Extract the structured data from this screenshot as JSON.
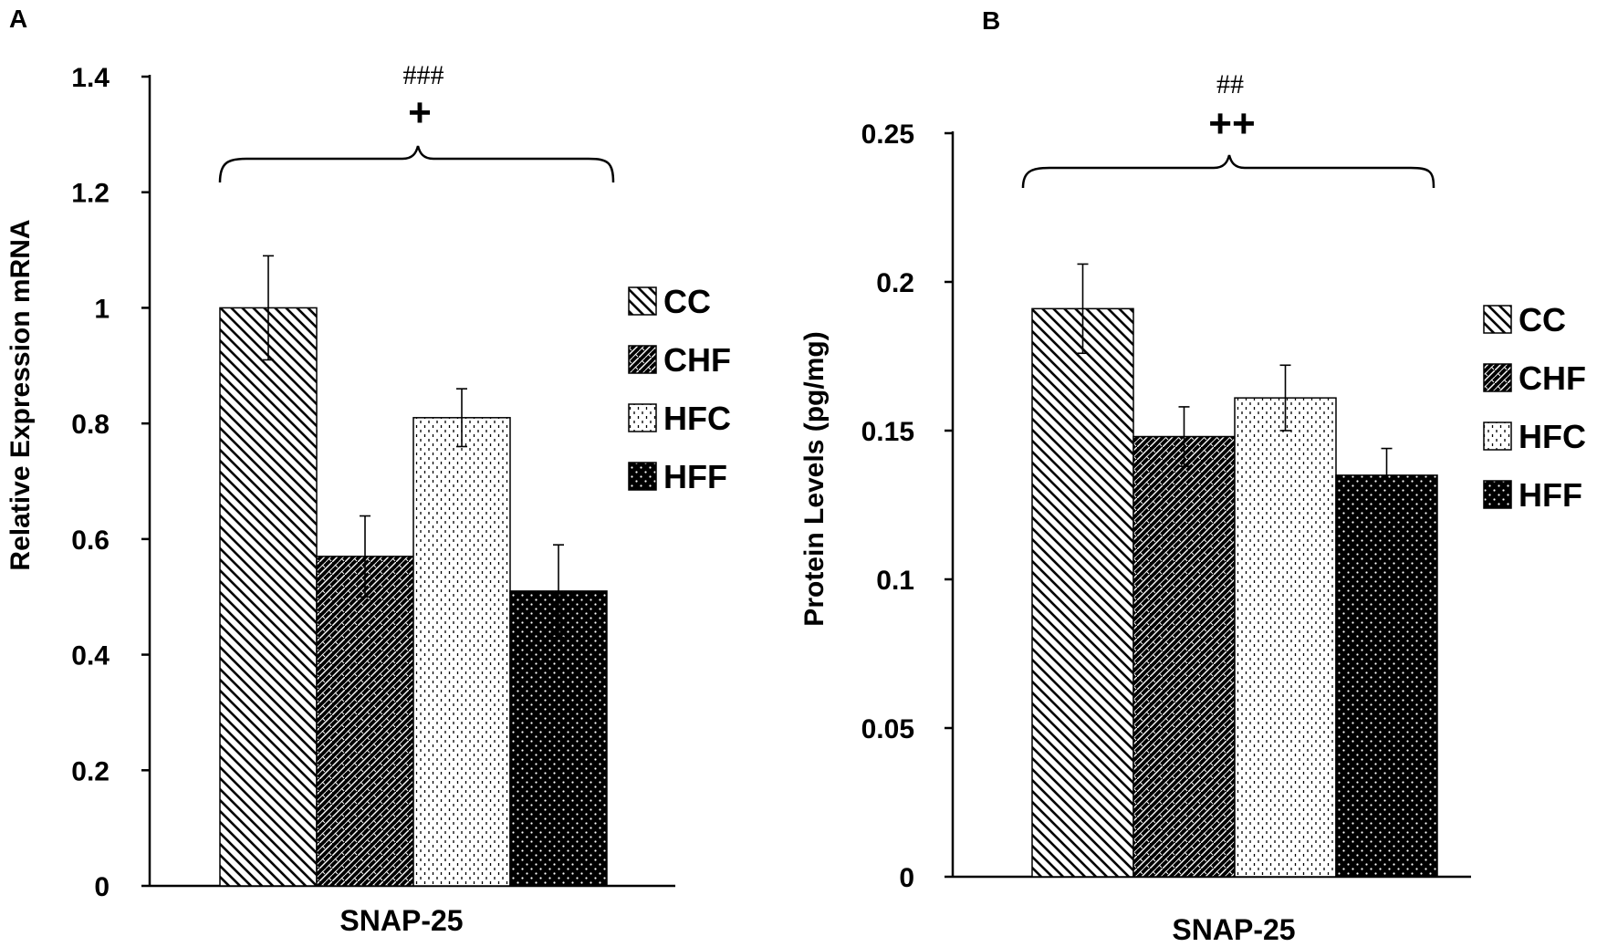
{
  "chart_data": [
    {
      "panel": "A",
      "type": "bar",
      "category": "SNAP-25",
      "xlabel": "SNAP-25",
      "ylabel": "Relative Expression mRNA",
      "ylim": [
        0,
        1.4
      ],
      "yticks": [
        0,
        0.2,
        0.4,
        0.6,
        0.8,
        1,
        1.2,
        1.4
      ],
      "ytick_labels": [
        "0",
        "0.2",
        "0.4",
        "0.6",
        "0.8",
        "1",
        "1.2",
        "1.4"
      ],
      "series": [
        {
          "name": "CC",
          "value": 1.0,
          "error": 0.09,
          "pattern": "diag"
        },
        {
          "name": "CHF",
          "value": 0.57,
          "error": 0.07,
          "pattern": "brick"
        },
        {
          "name": "HFC",
          "value": 0.81,
          "error": 0.05,
          "pattern": "vdash"
        },
        {
          "name": "HFF",
          "value": 0.51,
          "error": 0.08,
          "pattern": "dots"
        }
      ],
      "legend": [
        "CC",
        "CHF",
        "HFC",
        "HFF"
      ],
      "annotation": {
        "hash": "###",
        "plus": "+"
      }
    },
    {
      "panel": "B",
      "type": "bar",
      "category": "SNAP-25",
      "xlabel": "SNAP-25",
      "ylabel": "Protein Levels  (pg/mg)",
      "ylim": [
        0,
        0.25
      ],
      "yticks": [
        0,
        0.05,
        0.1,
        0.15,
        0.2,
        0.25
      ],
      "ytick_labels": [
        "0",
        "0.05",
        "0.1",
        "0.15",
        "0.2",
        "0.25"
      ],
      "series": [
        {
          "name": "CC",
          "value": 0.191,
          "error": 0.015,
          "pattern": "diag"
        },
        {
          "name": "CHF",
          "value": 0.148,
          "error": 0.01,
          "pattern": "brick"
        },
        {
          "name": "HFC",
          "value": 0.161,
          "error": 0.011,
          "pattern": "vdash"
        },
        {
          "name": "HFF",
          "value": 0.135,
          "error": 0.009,
          "pattern": "dots"
        }
      ],
      "legend": [
        "CC",
        "CHF",
        "HFC",
        "HFF"
      ],
      "annotation": {
        "hash": "##",
        "plus": "++"
      }
    }
  ]
}
